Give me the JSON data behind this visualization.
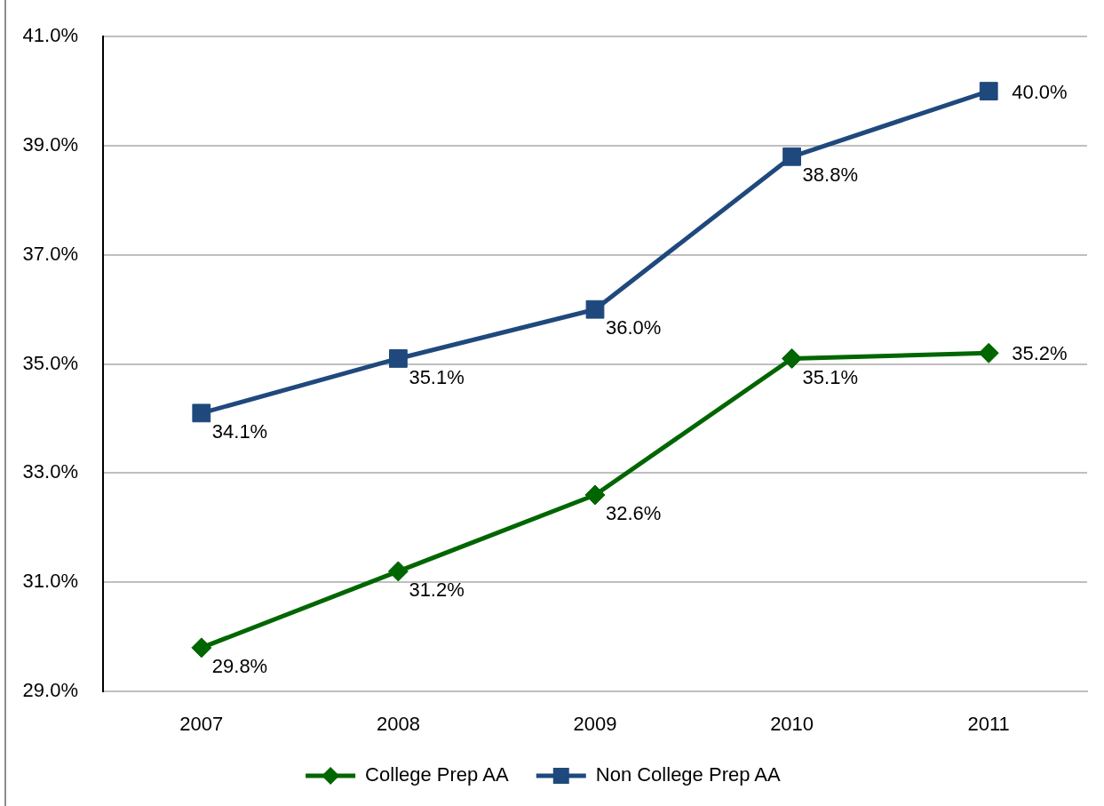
{
  "chart_data": {
    "type": "line",
    "categories": [
      "2007",
      "2008",
      "2009",
      "2010",
      "2011"
    ],
    "series": [
      {
        "name": "College Prep AA",
        "color": "#006600",
        "marker": "diamond",
        "values": [
          29.8,
          31.2,
          32.6,
          35.1,
          35.2
        ],
        "value_labels": [
          "29.8%",
          "31.2%",
          "32.6%",
          "35.1%",
          "35.2%"
        ]
      },
      {
        "name": "Non College Prep AA",
        "color": "#1f497d",
        "marker": "square",
        "values": [
          34.1,
          35.1,
          36.0,
          38.8,
          40.0
        ],
        "value_labels": [
          "34.1%",
          "35.1%",
          "36.0%",
          "38.8%",
          "40.0%"
        ]
      }
    ],
    "ylim": [
      29,
      41
    ],
    "yticks": [
      {
        "value": 29,
        "label": "29.0%"
      },
      {
        "value": 31,
        "label": "31.0%"
      },
      {
        "value": 33,
        "label": "33.0%"
      },
      {
        "value": 35,
        "label": "35.0%"
      },
      {
        "value": 37,
        "label": "37.0%"
      },
      {
        "value": 39,
        "label": "39.0%"
      },
      {
        "value": 41,
        "label": "41.0%"
      }
    ],
    "grid": "y",
    "legend": "bottom",
    "line_style": "solid"
  }
}
